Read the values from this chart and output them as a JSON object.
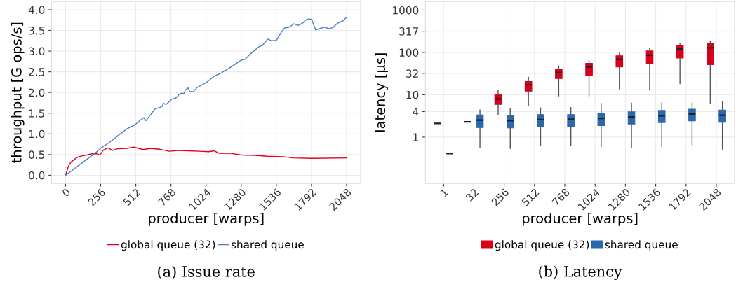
{
  "chart_data": [
    {
      "type": "line",
      "subtitle": "(a) Issue rate",
      "xlabel": "producer [warps]",
      "ylabel": "throughput [G ops/s]",
      "xlim": [
        -102.4,
        2150.4
      ],
      "xticks": [
        0,
        256,
        512,
        768,
        1024,
        1280,
        1536,
        1792,
        2048
      ],
      "ylim": [
        -0.2,
        4.2
      ],
      "yticks": [
        {
          "value": 0,
          "label": "0.0"
        },
        0.5,
        {
          "value": 1,
          "label": "1.0"
        },
        1.5,
        {
          "value": 2,
          "label": "2.0"
        },
        2.5,
        {
          "value": 3,
          "label": "3.0"
        },
        3.5,
        {
          "value": 4,
          "label": "4.0"
        }
      ],
      "grid": true,
      "legend": "bottom",
      "line_style": "solid",
      "series": [
        {
          "name": "global queue (32)",
          "color": "#e3001b",
          "x": [
            0,
            20,
            37,
            55,
            89,
            123,
            157,
            191,
            225,
            250,
            276,
            307,
            344,
            378,
            446,
            498,
            566,
            617,
            685,
            753,
            821,
            889,
            975,
            1043,
            1085,
            1119,
            1205,
            1281,
            1384,
            1469,
            1588,
            1656,
            1793,
            2048
          ],
          "values": [
            0,
            0.21,
            0.31,
            0.36,
            0.44,
            0.47,
            0.49,
            0.52,
            0.52,
            0.49,
            0.61,
            0.66,
            0.6,
            0.64,
            0.65,
            0.68,
            0.62,
            0.65,
            0.63,
            0.58,
            0.6,
            0.59,
            0.58,
            0.57,
            0.59,
            0.53,
            0.53,
            0.49,
            0.48,
            0.46,
            0.45,
            0.42,
            0.41,
            0.42
          ]
        },
        {
          "name": "shared queue",
          "color": "#4a7fc1",
          "x": [
            0,
            225,
            259,
            327,
            395,
            446,
            506,
            545,
            569,
            586,
            651,
            702,
            714,
            733,
            753,
            774,
            801,
            838,
            864,
            872,
            895,
            903,
            932,
            958,
            1026,
            1085,
            1128,
            1188,
            1230,
            1278,
            1307,
            1350,
            1406,
            1435,
            1474,
            1503,
            1537,
            1571,
            1597,
            1631,
            1665,
            1694,
            1725,
            1759,
            1793,
            1823,
            1886,
            1920,
            1949,
            1980,
            2018,
            2048
          ],
          "values": [
            0,
            0.56,
            0.66,
            0.81,
            0.99,
            1.12,
            1.22,
            1.33,
            1.39,
            1.32,
            1.6,
            1.66,
            1.74,
            1.71,
            1.77,
            1.84,
            1.86,
            1.98,
            1.98,
            2.06,
            2.11,
            2.02,
            2.02,
            2.12,
            2.24,
            2.4,
            2.46,
            2.58,
            2.67,
            2.78,
            2.8,
            2.94,
            3.1,
            3.14,
            3.29,
            3.25,
            3.26,
            3.45,
            3.56,
            3.58,
            3.66,
            3.62,
            3.67,
            3.77,
            3.77,
            3.51,
            3.58,
            3.54,
            3.57,
            3.67,
            3.72,
            3.82
          ]
        }
      ]
    },
    {
      "type": "box",
      "subtitle": "(b) Latency",
      "xlabel": "producer [warps]",
      "ylabel": "latency [µs]",
      "log": "y",
      "ylim": [
        0.08,
        1600
      ],
      "yticks": [
        1,
        4,
        10,
        32,
        100,
        317,
        1000
      ],
      "grid": true,
      "legend": "bottom",
      "categories": [
        "1",
        "32",
        "256",
        "512",
        "768",
        "1024",
        "1280",
        "1536",
        "1792",
        "2048"
      ],
      "series": [
        {
          "name": "global queue (32)",
          "color": "#d7001a",
          "boxes": [
            {
              "low": 2.11,
              "q1": 2.11,
              "median": 2.11,
              "q3": 2.11,
              "high": 2.11
            },
            {
              "low": 2.29,
              "q1": 2.29,
              "median": 2.29,
              "q3": 2.29,
              "high": 2.29
            },
            {
              "low": 3.37,
              "q1": 5.9,
              "median": 7.9,
              "q3": 10.1,
              "high": 12.6
            },
            {
              "low": 5.5,
              "q1": 12.2,
              "median": 17.3,
              "q3": 20.6,
              "high": 25.9
            },
            {
              "low": 9.4,
              "q1": 24.2,
              "median": 33.6,
              "q3": 40,
              "high": 47.6
            },
            {
              "low": 9.4,
              "q1": 28.2,
              "median": 45.4,
              "q3": 55.4,
              "high": 64.5
            },
            {
              "low": 13.7,
              "q1": 45.4,
              "median": 68.4,
              "q3": 83.4,
              "high": 95.9
            },
            {
              "low": 12.9,
              "q1": 55.4,
              "median": 86.3,
              "q3": 108,
              "high": 122
            },
            {
              "low": 18.3,
              "q1": 74,
              "median": 121,
              "q3": 148,
              "high": 166
            },
            {
              "low": 6.1,
              "q1": 51.6,
              "median": 128,
              "q3": 164,
              "high": 184
            }
          ]
        },
        {
          "name": "shared queue",
          "color": "#2b69ad",
          "boxes": [
            {
              "low": 0.41,
              "q1": 0.41,
              "median": 0.41,
              "q3": 0.41,
              "high": 0.41
            },
            {
              "low": 0.58,
              "q1": 1.69,
              "median": 2.52,
              "q3": 3.33,
              "high": 4.35
            },
            {
              "low": 0.54,
              "q1": 1.65,
              "median": 2.46,
              "q3": 3.25,
              "high": 4.67
            },
            {
              "low": 0.65,
              "q1": 1.77,
              "median": 2.6,
              "q3": 3.4,
              "high": 4.89
            },
            {
              "low": 0.64,
              "q1": 1.79,
              "median": 2.64,
              "q3": 3.4,
              "high": 5.0
            },
            {
              "low": 0.6,
              "q1": 1.88,
              "median": 2.76,
              "q3": 3.65,
              "high": 6.2
            },
            {
              "low": 0.58,
              "q1": 2.04,
              "median": 2.99,
              "q3": 3.96,
              "high": 6.3
            },
            {
              "low": 0.6,
              "q1": 2.21,
              "median": 3.21,
              "q3": 4.25,
              "high": 6.4
            },
            {
              "low": 0.64,
              "q1": 2.43,
              "median": 3.48,
              "q3": 4.56,
              "high": 6.5
            },
            {
              "low": 0.52,
              "q1": 2.24,
              "median": 3.29,
              "q3": 4.35,
              "high": 6.9
            }
          ]
        }
      ]
    }
  ]
}
